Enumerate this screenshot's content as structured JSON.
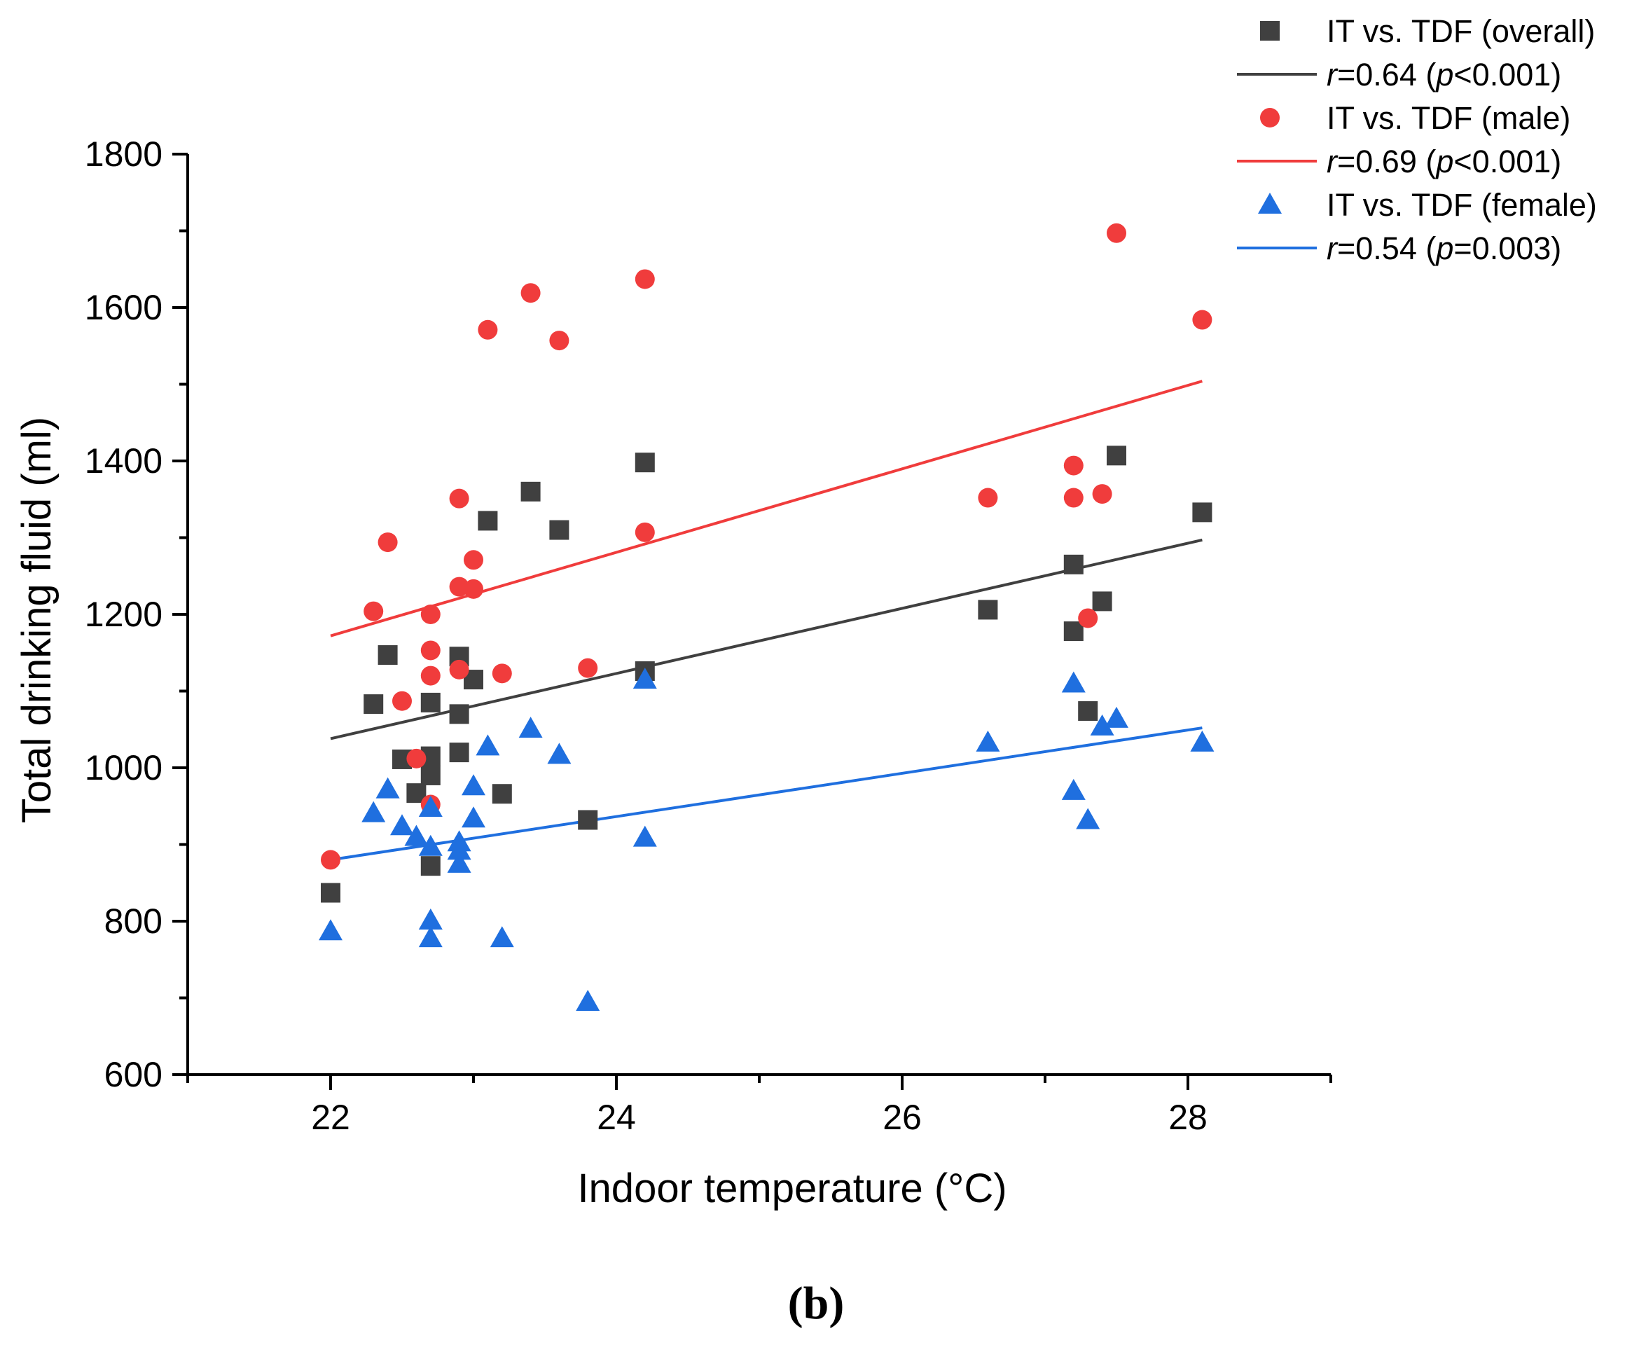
{
  "chart_data": {
    "type": "scatter",
    "title": "",
    "xlabel": "Indoor temperature (°C)",
    "ylabel": "Total drinking fluid (ml)",
    "xlim": [
      21,
      29
    ],
    "ylim": [
      600,
      1800
    ],
    "xticks": [
      22,
      24,
      26,
      28
    ],
    "yticks": [
      600,
      800,
      1000,
      1200,
      1400,
      1600,
      1800
    ],
    "xtick_labels": [
      "22",
      "24",
      "26",
      "28"
    ],
    "ytick_labels": [
      "600",
      "800",
      "1000",
      "1200",
      "1400",
      "1600",
      "1800"
    ],
    "grid": false,
    "legend_position": "top-right",
    "panel_label": "(b)",
    "series": [
      {
        "name": "IT vs. TDF (overall)",
        "marker": "square",
        "color": "#404040",
        "fit_label": {
          "r": "r",
          "r_text": "=0.64 (",
          "p": "p",
          "p_text": "<0.001)"
        },
        "fit": {
          "x": [
            22.0,
            28.1
          ],
          "y": [
            1038,
            1297
          ]
        },
        "points": [
          [
            22.0,
            837
          ],
          [
            22.3,
            1083
          ],
          [
            22.4,
            1147
          ],
          [
            22.5,
            1011
          ],
          [
            22.6,
            967
          ],
          [
            22.7,
            1085
          ],
          [
            22.7,
            1015
          ],
          [
            22.7,
            990
          ],
          [
            22.7,
            872
          ],
          [
            22.9,
            1145
          ],
          [
            22.9,
            1070
          ],
          [
            22.9,
            1020
          ],
          [
            23.0,
            1115
          ],
          [
            23.1,
            1322
          ],
          [
            23.2,
            966
          ],
          [
            23.4,
            1360
          ],
          [
            23.6,
            1310
          ],
          [
            23.8,
            932
          ],
          [
            24.2,
            1398
          ],
          [
            24.2,
            1126
          ],
          [
            26.6,
            1206
          ],
          [
            27.2,
            1265
          ],
          [
            27.2,
            1178
          ],
          [
            27.3,
            1074
          ],
          [
            27.4,
            1217
          ],
          [
            27.5,
            1407
          ],
          [
            28.1,
            1333
          ]
        ]
      },
      {
        "name": "IT vs. TDF (male)",
        "marker": "circle",
        "color": "#f03c3c",
        "fit_label": {
          "r": "r",
          "r_text": "=0.69 (",
          "p": "p",
          "p_text": "<0.001)"
        },
        "fit": {
          "x": [
            22.0,
            28.1
          ],
          "y": [
            1172,
            1504
          ]
        },
        "points": [
          [
            22.0,
            880
          ],
          [
            22.3,
            1204
          ],
          [
            22.4,
            1294
          ],
          [
            22.5,
            1087
          ],
          [
            22.6,
            1012
          ],
          [
            22.7,
            1200
          ],
          [
            22.7,
            1153
          ],
          [
            22.7,
            1120
          ],
          [
            22.7,
            952
          ],
          [
            22.9,
            1351
          ],
          [
            22.9,
            1236
          ],
          [
            22.9,
            1128
          ],
          [
            23.0,
            1271
          ],
          [
            23.0,
            1233
          ],
          [
            23.1,
            1571
          ],
          [
            23.2,
            1123
          ],
          [
            23.4,
            1619
          ],
          [
            23.6,
            1557
          ],
          [
            23.8,
            1130
          ],
          [
            24.2,
            1637
          ],
          [
            24.2,
            1307
          ],
          [
            26.6,
            1352
          ],
          [
            27.2,
            1394
          ],
          [
            27.2,
            1352
          ],
          [
            27.3,
            1195
          ],
          [
            27.4,
            1357
          ],
          [
            27.5,
            1697
          ],
          [
            28.1,
            1584
          ]
        ]
      },
      {
        "name": "IT vs. TDF (female)",
        "marker": "triangle",
        "color": "#1f6fdf",
        "fit_label": {
          "r": "r",
          "r_text": "=0.54 (",
          "p": "p",
          "p_text": "=0.003)"
        },
        "fit": {
          "x": [
            22.0,
            28.1
          ],
          "y": [
            880,
            1052
          ]
        },
        "points": [
          [
            22.0,
            787
          ],
          [
            22.3,
            941
          ],
          [
            22.4,
            972
          ],
          [
            22.5,
            924
          ],
          [
            22.6,
            910
          ],
          [
            22.7,
            948
          ],
          [
            22.7,
            897
          ],
          [
            22.7,
            801
          ],
          [
            22.7,
            778
          ],
          [
            22.9,
            903
          ],
          [
            22.9,
            892
          ],
          [
            22.9,
            875
          ],
          [
            23.0,
            976
          ],
          [
            23.0,
            934
          ],
          [
            23.1,
            1028
          ],
          [
            23.2,
            778
          ],
          [
            23.4,
            1051
          ],
          [
            23.6,
            1017
          ],
          [
            23.8,
            695
          ],
          [
            24.2,
            1115
          ],
          [
            24.2,
            909
          ],
          [
            26.6,
            1033
          ],
          [
            27.2,
            1110
          ],
          [
            27.2,
            970
          ],
          [
            27.3,
            932
          ],
          [
            27.4,
            1054
          ],
          [
            27.5,
            1064
          ],
          [
            28.1,
            1033
          ]
        ]
      }
    ]
  }
}
